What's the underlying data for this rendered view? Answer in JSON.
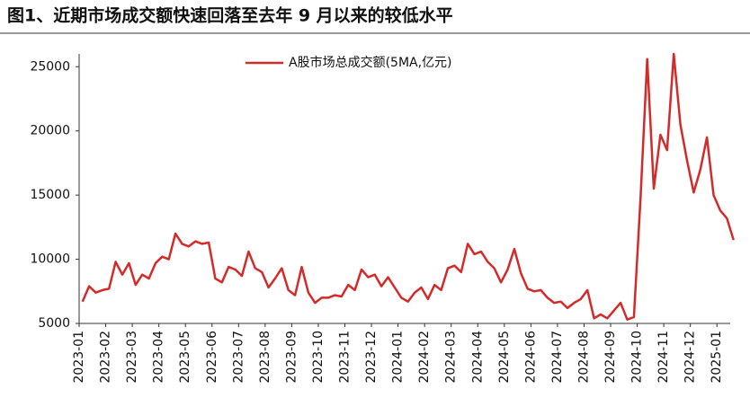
{
  "chart_data": {
    "type": "line",
    "title": "图1、近期市场成交额快速回落至去年 9 月以来的较低水平",
    "x": [
      "2023-01",
      "2023-01",
      "2023-01",
      "2023-01",
      "2023-02",
      "2023-02",
      "2023-02",
      "2023-02",
      "2023-03",
      "2023-03",
      "2023-03",
      "2023-03",
      "2023-04",
      "2023-04",
      "2023-04",
      "2023-04",
      "2023-05",
      "2023-05",
      "2023-05",
      "2023-05",
      "2023-06",
      "2023-06",
      "2023-06",
      "2023-06",
      "2023-07",
      "2023-07",
      "2023-07",
      "2023-07",
      "2023-08",
      "2023-08",
      "2023-08",
      "2023-08",
      "2023-09",
      "2023-09",
      "2023-09",
      "2023-09",
      "2023-10",
      "2023-10",
      "2023-10",
      "2023-10",
      "2023-11",
      "2023-11",
      "2023-11",
      "2023-11",
      "2023-12",
      "2023-12",
      "2023-12",
      "2023-12",
      "2024-01",
      "2024-01",
      "2024-01",
      "2024-01",
      "2024-02",
      "2024-02",
      "2024-02",
      "2024-02",
      "2024-03",
      "2024-03",
      "2024-03",
      "2024-03",
      "2024-04",
      "2024-04",
      "2024-04",
      "2024-04",
      "2024-05",
      "2024-05",
      "2024-05",
      "2024-05",
      "2024-06",
      "2024-06",
      "2024-06",
      "2024-06",
      "2024-07",
      "2024-07",
      "2024-07",
      "2024-07",
      "2024-08",
      "2024-08",
      "2024-08",
      "2024-08",
      "2024-09",
      "2024-09",
      "2024-09",
      "2024-09",
      "2024-10",
      "2024-10",
      "2024-10",
      "2024-10",
      "2024-11",
      "2024-11",
      "2024-11",
      "2024-11",
      "2024-12",
      "2024-12",
      "2024-12",
      "2024-12",
      "2025-01",
      "2025-01",
      "2025-01"
    ],
    "series": [
      {
        "name": "A股市场总成交额(5MA,亿元)",
        "color": "#d42a2a",
        "values": [
          6700,
          7900,
          7400,
          7600,
          7700,
          9800,
          8800,
          9700,
          8000,
          8800,
          8500,
          9700,
          10200,
          10000,
          12000,
          11200,
          11000,
          11400,
          11200,
          11300,
          8500,
          8200,
          9400,
          9200,
          8700,
          10600,
          9300,
          9000,
          7800,
          8500,
          9300,
          7600,
          7200,
          9400,
          7400,
          6600,
          7000,
          7000,
          7200,
          7100,
          8000,
          7600,
          9200,
          8600,
          8800,
          7900,
          8600,
          7800,
          7000,
          6700,
          7400,
          7800,
          6900,
          8000,
          7600,
          9300,
          9500,
          9000,
          11200,
          10400,
          10600,
          9800,
          9300,
          8200,
          9200,
          10800,
          8900,
          7700,
          7500,
          7600,
          7000,
          6600,
          6700,
          6200,
          6600,
          6900,
          7600,
          5400,
          5700,
          5400,
          6000,
          6600,
          5300,
          5500,
          14800,
          25600,
          15500,
          19700,
          18500,
          26000,
          20500,
          17700,
          15200,
          17000,
          19500,
          15000,
          13800,
          13200,
          11500
        ]
      }
    ],
    "ylim": [
      5000,
      26000
    ],
    "yticks": [
      5000,
      10000,
      15000,
      20000,
      25000
    ],
    "xticks": [
      "2023-01",
      "2023-02",
      "2023-03",
      "2023-04",
      "2023-05",
      "2023-06",
      "2023-07",
      "2023-08",
      "2023-09",
      "2023-10",
      "2023-11",
      "2023-12",
      "2024-01",
      "2024-02",
      "2024-03",
      "2024-04",
      "2024-05",
      "2024-06",
      "2024-07",
      "2024-08",
      "2024-09",
      "2024-10",
      "2024-11",
      "2024-12",
      "2025-01"
    ],
    "legend": "top-left"
  }
}
